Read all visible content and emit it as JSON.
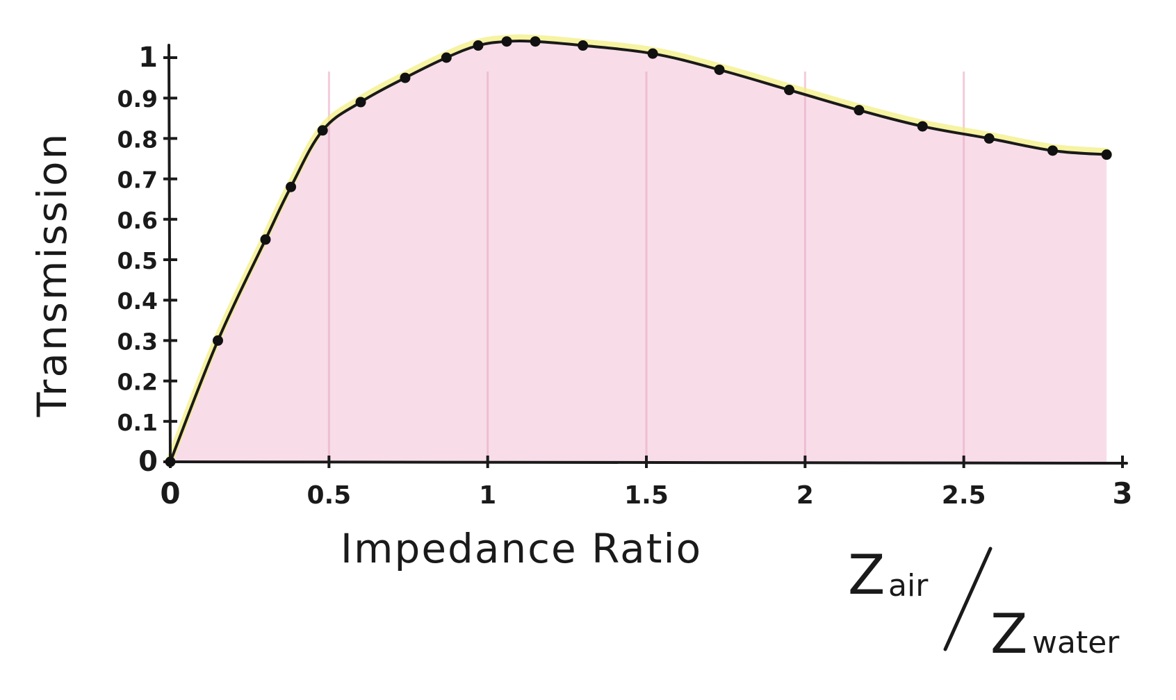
{
  "chart_data": {
    "type": "line",
    "title": "",
    "xlabel": "Impedance Ratio",
    "ylabel": "Transmission",
    "xlim": [
      0,
      3
    ],
    "ylim": [
      0,
      1
    ],
    "x_ticks": [
      "0",
      "0.5",
      "1",
      "1.5",
      "2",
      "2.5",
      "3"
    ],
    "y_ticks": [
      "0",
      "0.1",
      "0.2",
      "0.3",
      "0.4",
      "0.5",
      "0.6",
      "0.7",
      "0.8",
      "0.9",
      "1"
    ],
    "ratio_label": {
      "numerator": "Z",
      "numerator_sub": "air",
      "denominator": "Z",
      "denominator_sub": "water"
    },
    "series": [
      {
        "x": [
          0,
          0.15,
          0.3,
          0.38,
          0.48,
          0.6,
          0.74,
          0.87,
          0.97,
          1.06,
          1.15,
          1.3,
          1.52,
          1.73,
          1.95,
          2.17,
          2.37,
          2.58,
          2.78,
          2.95
        ],
        "values": [
          0,
          0.3,
          0.55,
          0.68,
          0.82,
          0.89,
          0.95,
          1.0,
          1.03,
          1.04,
          1.04,
          1.03,
          1.01,
          0.97,
          0.92,
          0.87,
          0.83,
          0.8,
          0.77,
          0.76
        ]
      }
    ],
    "colors": {
      "fill": "#f5d2e2",
      "fill_grid": "#e9a3bf",
      "highlight": "#f2ee7a",
      "line": "#1a1a1a",
      "marker": "#111111"
    },
    "grid": "vertical"
  }
}
